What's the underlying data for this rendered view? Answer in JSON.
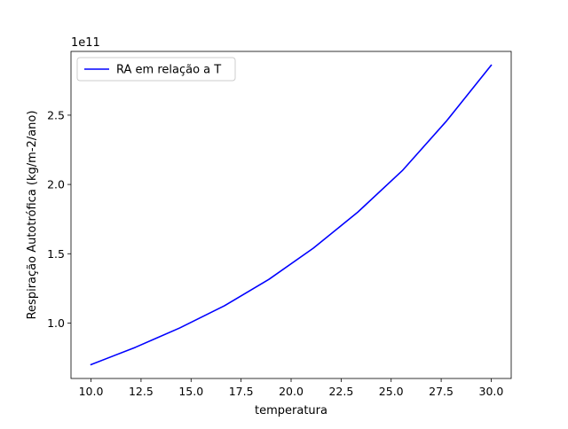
{
  "chart_data": {
    "type": "line",
    "title": "",
    "xlabel": "temperatura",
    "ylabel": "Respiração Autotrófica (kg/m-2/ano)",
    "y_offset_label": "1e11",
    "xlim": [
      9.0,
      31.0
    ],
    "ylim": [
      0.6,
      2.96
    ],
    "y_scale_multiplier": 100000000000.0,
    "x_ticks": [
      10.0,
      12.5,
      15.0,
      17.5,
      20.0,
      22.5,
      25.0,
      27.5,
      30.0
    ],
    "x_tick_labels": [
      "10.0",
      "12.5",
      "15.0",
      "17.5",
      "20.0",
      "22.5",
      "25.0",
      "27.5",
      "30.0"
    ],
    "y_ticks": [
      1.0,
      1.5,
      2.0,
      2.5
    ],
    "y_tick_labels": [
      "1.0",
      "1.5",
      "2.0",
      "2.5"
    ],
    "grid": false,
    "legend_placement": "upper-left",
    "series": [
      {
        "name": "RA em relação a T",
        "color": "#0000ff",
        "x": [
          10.0,
          12.22,
          14.44,
          16.67,
          18.89,
          21.11,
          23.33,
          25.56,
          27.78,
          30.0
        ],
        "y": [
          0.7,
          0.825,
          0.965,
          1.125,
          1.315,
          1.54,
          1.8,
          2.1,
          2.46,
          2.86
        ]
      }
    ]
  }
}
